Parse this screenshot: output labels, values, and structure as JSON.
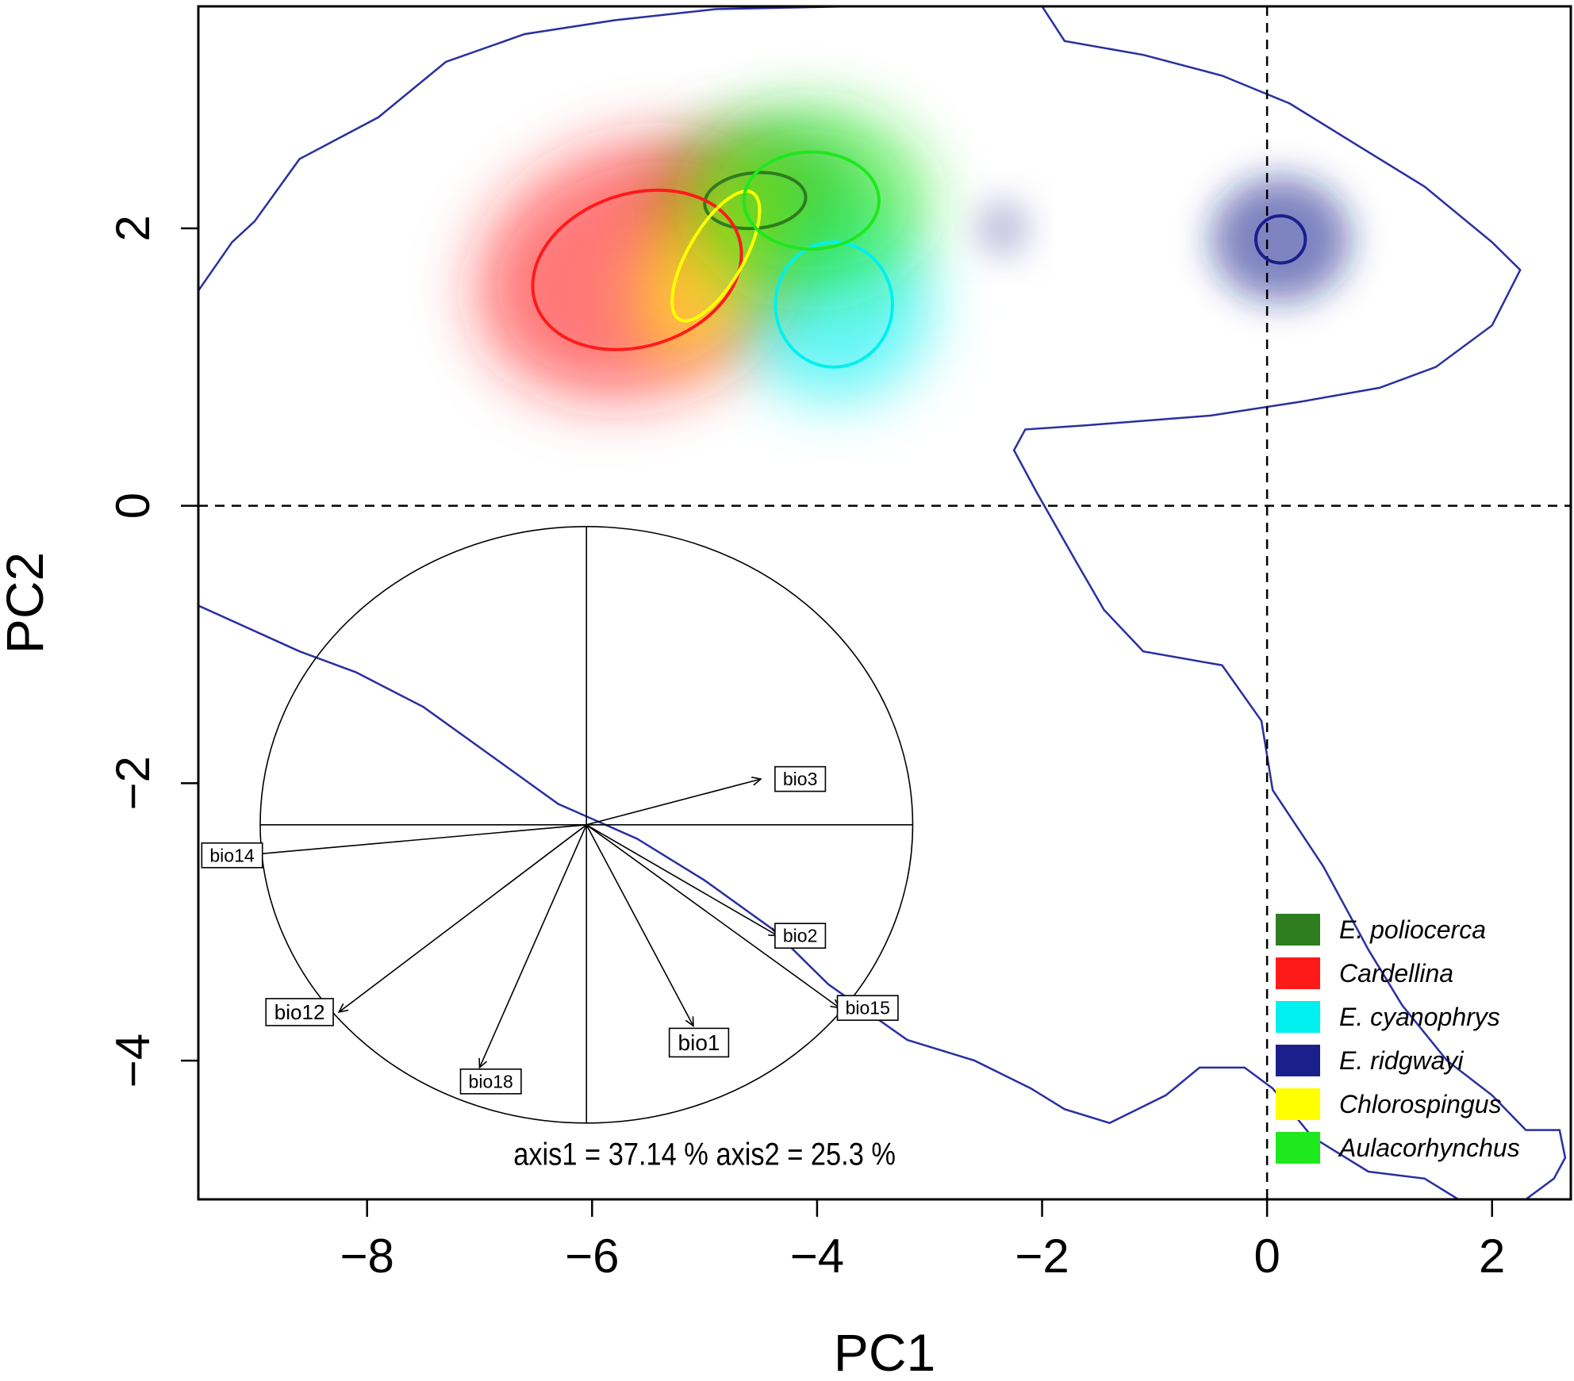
{
  "chart_data": {
    "type": "scatter",
    "xlabel": "PC1",
    "ylabel": "PC2",
    "xlim": [
      -9.5,
      2.7
    ],
    "ylim": [
      -5.0,
      3.6
    ],
    "xticks": [
      -8,
      -6,
      -4,
      -2,
      0,
      2
    ],
    "yticks": [
      -4,
      -2,
      0,
      2
    ],
    "xtick_labels": [
      "−8",
      "−6",
      "−4",
      "−2",
      "0",
      "2"
    ],
    "ytick_labels": [
      "−4",
      "−2",
      "0",
      "2"
    ],
    "reference_lines": {
      "x": 0,
      "y": 0,
      "style": "dashed"
    },
    "grid": false,
    "legend_position": "bottom-right",
    "series": [
      {
        "name": "E. poliocerca",
        "color": "#2e7d1f",
        "center": [
          -4.55,
          2.2
        ],
        "radii": [
          0.45,
          0.2
        ],
        "rotation": -5,
        "density_sd": 0.45
      },
      {
        "name": "Cardellina",
        "color": "#ff1a1a",
        "center": [
          -5.6,
          1.7
        ],
        "radii": [
          0.95,
          0.55
        ],
        "rotation": -18,
        "density_sd": 0.5
      },
      {
        "name": "E. cyanophrys",
        "color": "#00f0f0",
        "center": [
          -3.85,
          1.45
        ],
        "radii": [
          0.52,
          0.45
        ],
        "rotation": 0,
        "density_sd": 0.35
      },
      {
        "name": "E. ridgwayi",
        "color": "#1a1f8c",
        "center": [
          0.12,
          1.92
        ],
        "radii": [
          0.22,
          0.17
        ],
        "rotation": 0,
        "density_sd": 0.4
      },
      {
        "name": "Chlorospingus",
        "color": "#ffff00",
        "center": [
          -4.9,
          1.8
        ],
        "radii": [
          0.65,
          0.2
        ],
        "rotation": -60,
        "density_sd": 0.35
      },
      {
        "name": "Aulacorhynchus",
        "color": "#1ee81e",
        "center": [
          -4.05,
          2.2
        ],
        "radii": [
          0.6,
          0.35
        ],
        "rotation": 0,
        "density_sd": 0.45
      }
    ],
    "extra_density_patch": {
      "center": [
        -2.35,
        2.0
      ],
      "color": "#9a9acc"
    },
    "environment_envelope_color": "#2a2fa0",
    "envelope_upper": [
      [
        -9.5,
        1.55
      ],
      [
        -9.2,
        1.9
      ],
      [
        -9.0,
        2.05
      ],
      [
        -8.6,
        2.5
      ],
      [
        -7.9,
        2.8
      ],
      [
        -7.3,
        3.2
      ],
      [
        -6.6,
        3.4
      ],
      [
        -5.8,
        3.5
      ],
      [
        -4.9,
        3.58
      ],
      [
        -3.7,
        3.6
      ],
      [
        -2.0,
        3.6
      ],
      [
        -1.8,
        3.35
      ],
      [
        -1.1,
        3.25
      ],
      [
        -0.4,
        3.1
      ],
      [
        0.2,
        2.9
      ],
      [
        0.8,
        2.6
      ],
      [
        1.4,
        2.3
      ],
      [
        2.0,
        1.9
      ],
      [
        2.25,
        1.7
      ],
      [
        2.0,
        1.3
      ],
      [
        1.5,
        1.0
      ],
      [
        1.0,
        0.85
      ],
      [
        0.3,
        0.75
      ],
      [
        -0.5,
        0.65
      ],
      [
        -1.6,
        0.58
      ],
      [
        -2.15,
        0.55
      ],
      [
        -2.25,
        0.4
      ],
      [
        -2.05,
        0.1
      ],
      [
        -1.7,
        -0.4
      ],
      [
        -1.45,
        -0.75
      ],
      [
        -1.1,
        -1.05
      ],
      [
        -0.4,
        -1.15
      ],
      [
        -0.05,
        -1.55
      ],
      [
        0.05,
        -2.05
      ],
      [
        0.5,
        -2.6
      ],
      [
        0.9,
        -3.2
      ],
      [
        1.2,
        -3.6
      ],
      [
        1.6,
        -4.0
      ],
      [
        2.0,
        -4.25
      ],
      [
        2.3,
        -4.5
      ],
      [
        2.6,
        -4.5
      ],
      [
        2.65,
        -4.7
      ],
      [
        2.55,
        -4.85
      ],
      [
        2.3,
        -5.0
      ]
    ],
    "envelope_lower": [
      [
        -9.5,
        -0.72
      ],
      [
        -8.6,
        -1.05
      ],
      [
        -8.1,
        -1.2
      ],
      [
        -7.5,
        -1.45
      ],
      [
        -6.9,
        -1.8
      ],
      [
        -6.3,
        -2.15
      ],
      [
        -5.6,
        -2.4
      ],
      [
        -5.0,
        -2.7
      ],
      [
        -4.4,
        -3.05
      ],
      [
        -3.9,
        -3.45
      ],
      [
        -3.2,
        -3.85
      ],
      [
        -2.6,
        -4.0
      ],
      [
        -2.1,
        -4.2
      ],
      [
        -1.8,
        -4.35
      ],
      [
        -1.4,
        -4.45
      ],
      [
        -0.9,
        -4.25
      ],
      [
        -0.6,
        -4.05
      ],
      [
        -0.2,
        -4.05
      ],
      [
        0.05,
        -4.2
      ],
      [
        0.4,
        -4.55
      ],
      [
        0.9,
        -4.8
      ],
      [
        1.4,
        -4.85
      ],
      [
        1.7,
        -5.0
      ]
    ],
    "pca_correlation_circle": {
      "center": [
        -6.05,
        -2.3
      ],
      "radius_x": 2.9,
      "radius_y": 2.15,
      "variance_text": "axis1 =  37.14 % axis2 =  25.3 %",
      "vectors": [
        {
          "name": "bio3",
          "end": [
            -4.5,
            -1.97
          ],
          "label_at": [
            -4.15,
            -1.97
          ],
          "font": 23
        },
        {
          "name": "bio14",
          "end": [
            -9.1,
            -2.52
          ],
          "label_at": [
            -9.2,
            -2.52
          ],
          "font": 23
        },
        {
          "name": "bio2",
          "end": [
            -4.35,
            -3.1
          ],
          "label_at": [
            -4.15,
            -3.1
          ],
          "font": 23
        },
        {
          "name": "bio15",
          "end": [
            -3.8,
            -3.62
          ],
          "label_at": [
            -3.55,
            -3.62
          ],
          "font": 23
        },
        {
          "name": "bio12",
          "end": [
            -8.25,
            -3.65
          ],
          "label_at": [
            -8.6,
            -3.65
          ],
          "font": 26
        },
        {
          "name": "bio1",
          "end": [
            -5.1,
            -3.75
          ],
          "label_at": [
            -5.05,
            -3.87
          ],
          "font": 28
        },
        {
          "name": "bio18",
          "end": [
            -7.0,
            -4.05
          ],
          "label_at": [
            -6.9,
            -4.15
          ],
          "font": 23
        }
      ]
    }
  }
}
